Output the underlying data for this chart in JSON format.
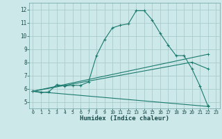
{
  "xlabel": "Humidex (Indice chaleur)",
  "background_color": "#cce8e8",
  "grid_color": "#aacccc",
  "line_color": "#1a7a6e",
  "xlim": [
    -0.5,
    23.5
  ],
  "ylim": [
    4.5,
    12.5
  ],
  "xticks": [
    0,
    1,
    2,
    3,
    4,
    5,
    6,
    7,
    8,
    9,
    10,
    11,
    12,
    13,
    14,
    15,
    16,
    17,
    18,
    19,
    20,
    21,
    22,
    23
  ],
  "yticks": [
    5,
    6,
    7,
    8,
    9,
    10,
    11,
    12
  ],
  "line1_x": [
    0,
    1,
    2,
    3,
    4,
    5,
    6,
    7,
    8,
    9,
    10,
    11,
    12,
    13,
    14,
    15,
    16,
    17,
    18,
    19,
    20,
    21,
    22
  ],
  "line1_y": [
    5.8,
    5.7,
    5.75,
    6.3,
    6.2,
    6.25,
    6.25,
    6.5,
    8.5,
    9.7,
    10.6,
    10.8,
    10.9,
    11.9,
    11.9,
    11.2,
    10.2,
    9.3,
    8.5,
    8.5,
    7.5,
    6.2,
    4.7
  ],
  "line2_x": [
    0,
    22
  ],
  "line2_y": [
    5.8,
    8.6
  ],
  "line3_x": [
    0,
    20,
    22
  ],
  "line3_y": [
    5.8,
    8.0,
    7.5
  ],
  "line4_x": [
    0,
    22
  ],
  "line4_y": [
    5.8,
    4.65
  ]
}
